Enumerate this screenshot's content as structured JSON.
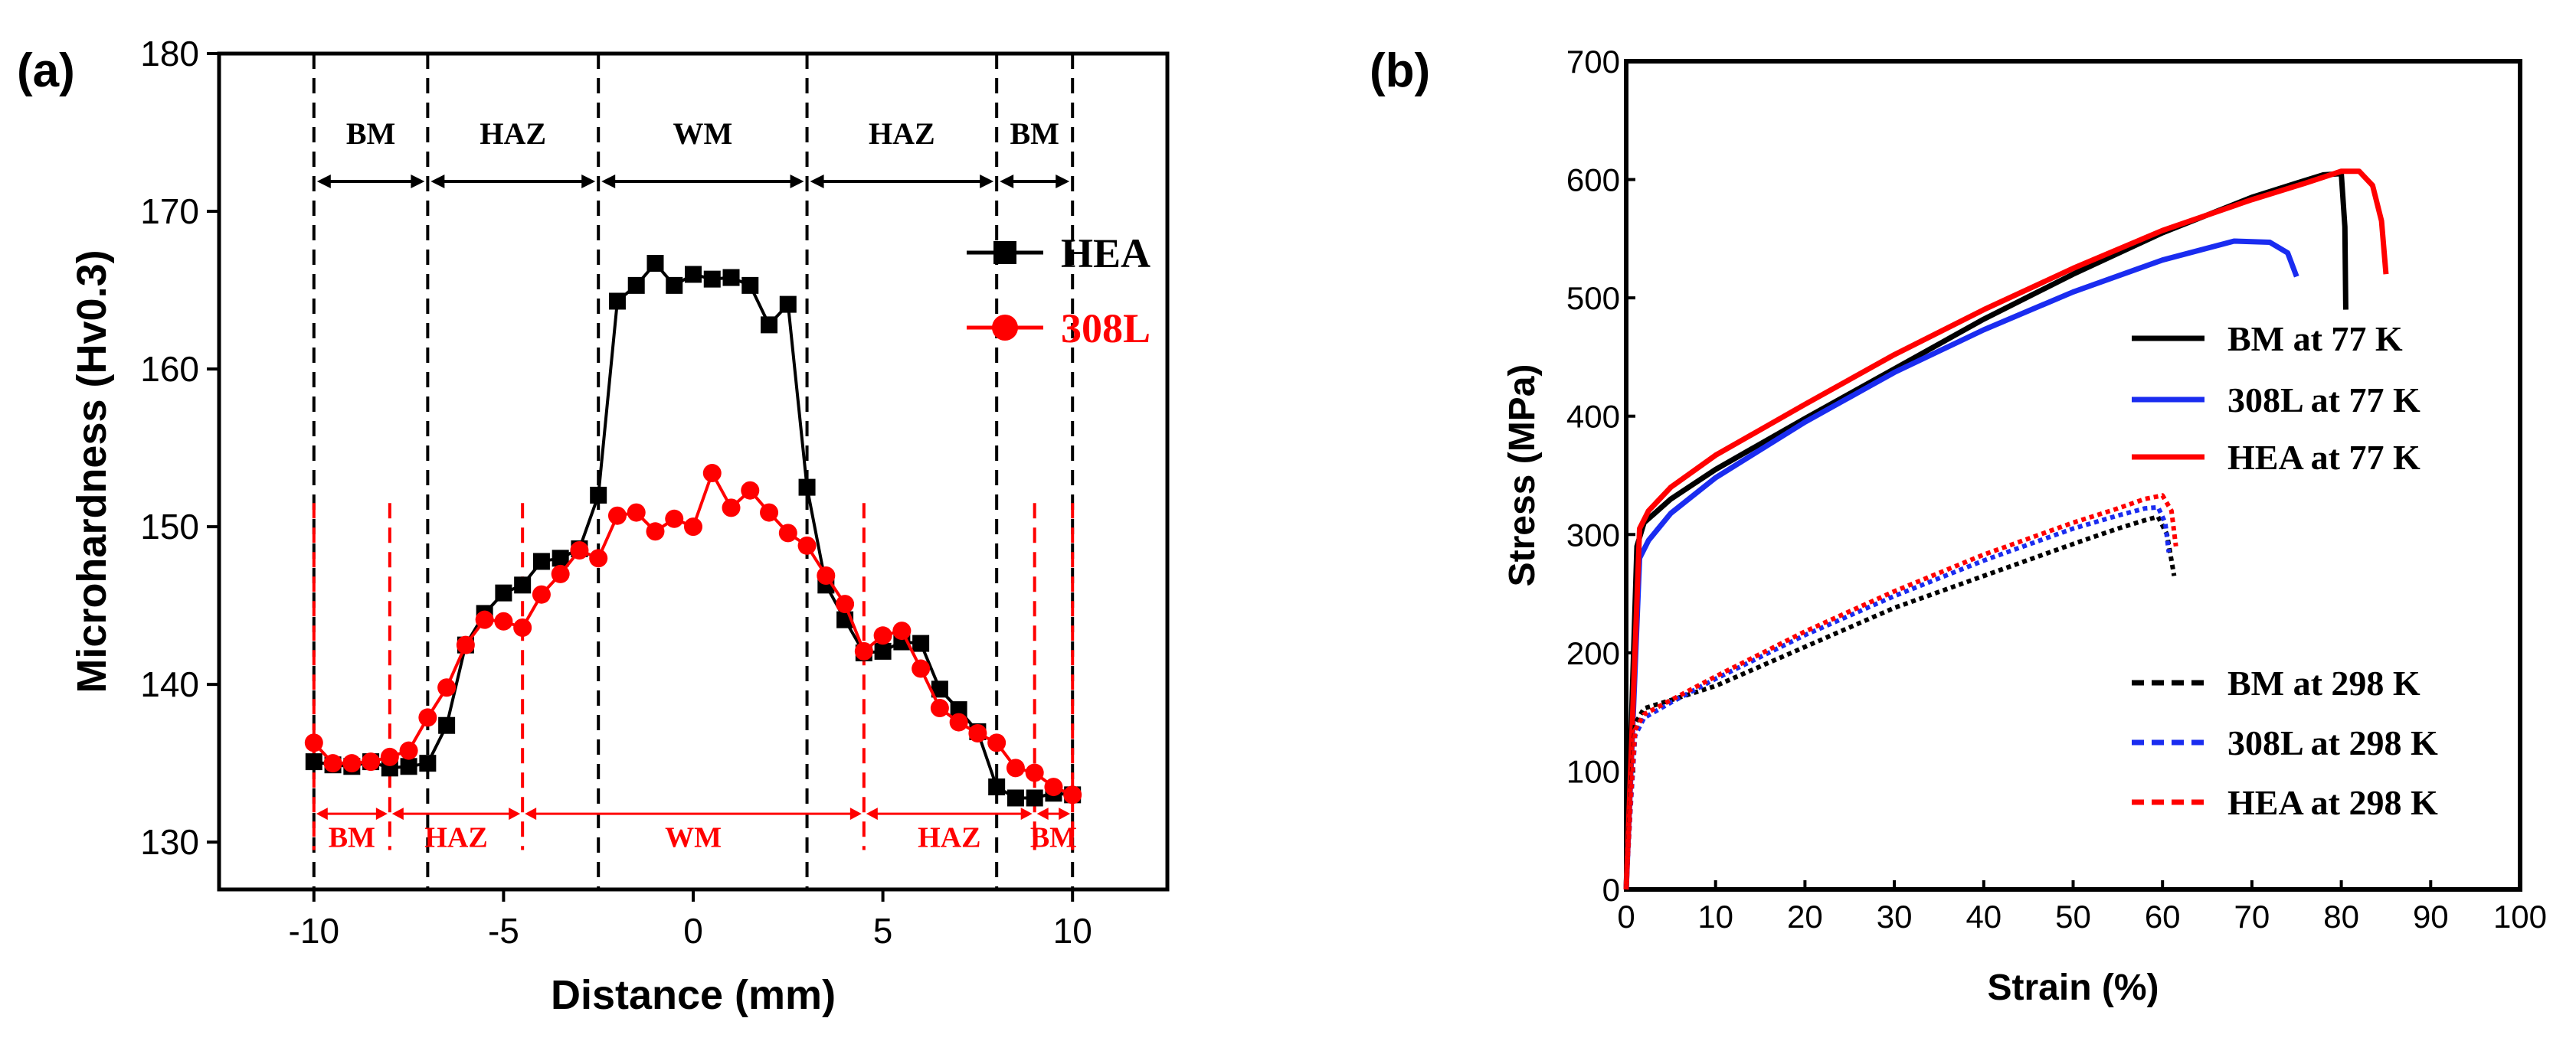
{
  "colors": {
    "black": "#000000",
    "red": "#ff0000",
    "blue": "#1a2cf0",
    "axis": "#000000"
  },
  "chart_data": [
    {
      "panel_label": "(a)",
      "type": "line",
      "xlabel": "Distance (mm)",
      "ylabel": "Microhardness (Hv0.3)",
      "xlim": [
        -12.5,
        12.5
      ],
      "ylim": [
        127,
        180
      ],
      "xticks": [
        -10,
        -5,
        0,
        5,
        10
      ],
      "xtick_labels": [
        "-10",
        "-5",
        "0",
        "5",
        "10"
      ],
      "yticks": [
        130,
        140,
        150,
        160,
        170,
        180
      ],
      "ytick_labels": [
        "130",
        "140",
        "150",
        "160",
        "170",
        "180"
      ],
      "legend": {
        "position": "top-right",
        "entries": [
          "HEA",
          "308L"
        ]
      },
      "series": [
        {
          "name": "HEA",
          "color": "#000000",
          "marker": "square",
          "x": [
            -10,
            -9.5,
            -9,
            -8.5,
            -8,
            -7.5,
            -7,
            -6.5,
            -6,
            -5.5,
            -5,
            -4.5,
            -4,
            -3.5,
            -3,
            -2.5,
            -2,
            -1.5,
            -1,
            -0.5,
            0,
            0.5,
            1,
            1.5,
            2,
            2.5,
            3,
            3.5,
            4,
            4.5,
            5,
            5.5,
            6,
            6.5,
            7,
            7.5,
            8,
            8.5,
            9,
            9.5,
            10
          ],
          "y": [
            135.1,
            134.9,
            134.8,
            135.1,
            134.7,
            134.8,
            135.0,
            137.4,
            142.5,
            144.5,
            145.8,
            146.3,
            147.8,
            148.0,
            148.6,
            152.0,
            164.3,
            165.3,
            166.7,
            165.3,
            166.0,
            165.7,
            165.8,
            165.3,
            162.8,
            164.1,
            152.5,
            146.3,
            144.1,
            142.0,
            142.1,
            142.7,
            142.6,
            139.7,
            138.4,
            137.0,
            133.5,
            132.8,
            132.8,
            133.1,
            133.0
          ]
        },
        {
          "name": "308L",
          "color": "#ff0000",
          "marker": "circle",
          "x": [
            -10,
            -9.5,
            -9,
            -8.5,
            -8,
            -7.5,
            -7,
            -6.5,
            -6,
            -5.5,
            -5,
            -4.5,
            -4,
            -3.5,
            -3,
            -2.5,
            -2,
            -1.5,
            -1,
            -0.5,
            0,
            0.5,
            1,
            1.5,
            2,
            2.5,
            3,
            3.5,
            4,
            4.5,
            5,
            5.5,
            6,
            6.5,
            7,
            7.5,
            8,
            8.5,
            9,
            9.5,
            10
          ],
          "y": [
            136.3,
            135.0,
            135.0,
            135.1,
            135.4,
            135.8,
            137.9,
            139.8,
            142.5,
            144.1,
            144.0,
            143.6,
            145.7,
            147.0,
            148.5,
            148.0,
            150.7,
            150.9,
            149.7,
            150.5,
            150.0,
            153.4,
            151.2,
            152.3,
            150.9,
            149.6,
            148.8,
            146.9,
            145.1,
            142.1,
            143.1,
            143.4,
            141.0,
            138.5,
            137.6,
            136.9,
            136.3,
            134.7,
            134.4,
            133.5,
            133.0
          ]
        }
      ],
      "zones_black": {
        "boundaries_x": [
          -10,
          -7,
          -2.5,
          3,
          8,
          10
        ],
        "labels": [
          "BM",
          "HAZ",
          "WM",
          "HAZ",
          "BM"
        ]
      },
      "zones_red": {
        "boundaries_x": [
          -10,
          -8,
          -4.5,
          4.5,
          9,
          10
        ],
        "labels": [
          "BM",
          "HAZ",
          "WM",
          "HAZ",
          "BM"
        ]
      }
    },
    {
      "panel_label": "(b)",
      "type": "line",
      "xlabel": "Strain (%)",
      "ylabel": "Stress (MPa)",
      "xlim": [
        0,
        100
      ],
      "ylim": [
        0,
        700
      ],
      "xticks": [
        0,
        10,
        20,
        30,
        40,
        50,
        60,
        70,
        80,
        90,
        100
      ],
      "xtick_labels": [
        "0",
        "10",
        "20",
        "30",
        "40",
        "50",
        "60",
        "70",
        "80",
        "90",
        "100"
      ],
      "yticks": [
        0,
        100,
        200,
        300,
        400,
        500,
        600,
        700
      ],
      "ytick_labels": [
        "0",
        "100",
        "200",
        "300",
        "400",
        "500",
        "600",
        "700"
      ],
      "legend": {
        "position": "right",
        "entries": [
          "BM at 77 K",
          "308L at 77 K",
          "HEA at 77 K",
          "BM at 298 K",
          "308L at 298 K",
          "HEA at 298 K"
        ]
      },
      "series": [
        {
          "name": "BM at 77 K",
          "color": "#000000",
          "style": "solid",
          "x": [
            0,
            1.2,
            2,
            5,
            10,
            20,
            30,
            40,
            50,
            60,
            70,
            75,
            78,
            80,
            80.4,
            80.5
          ],
          "y": [
            0,
            290,
            310,
            330,
            355,
            398,
            440,
            482,
            520,
            555,
            585,
            597,
            604,
            605,
            560,
            490
          ]
        },
        {
          "name": "308L at 77 K",
          "color": "#1a2cf0",
          "style": "solid",
          "x": [
            0,
            1.5,
            2.5,
            5,
            10,
            20,
            30,
            40,
            50,
            60,
            68,
            72,
            74,
            75
          ],
          "y": [
            0,
            280,
            295,
            318,
            348,
            395,
            437,
            473,
            505,
            532,
            548,
            547,
            538,
            518
          ]
        },
        {
          "name": "HEA at 77 K",
          "color": "#ff0000",
          "style": "solid",
          "x": [
            0,
            1.5,
            2.5,
            5,
            10,
            20,
            30,
            40,
            50,
            60,
            70,
            76,
            80,
            82,
            83.5,
            84.5,
            85
          ],
          "y": [
            0,
            305,
            320,
            340,
            367,
            410,
            452,
            490,
            525,
            557,
            583,
            597,
            607,
            607,
            595,
            565,
            520
          ]
        },
        {
          "name": "BM at 298 K",
          "color": "#000000",
          "style": "dashed",
          "x": [
            0,
            0.5,
            1,
            2,
            5,
            10,
            20,
            30,
            40,
            50,
            55,
            58,
            59.5,
            60.5,
            61.3
          ],
          "y": [
            0,
            80,
            140,
            153,
            160,
            172,
            205,
            238,
            265,
            292,
            305,
            312,
            315,
            300,
            265
          ]
        },
        {
          "name": "308L at 298 K",
          "color": "#1a2cf0",
          "style": "dashed",
          "x": [
            0,
            0.5,
            1,
            2,
            5,
            10,
            20,
            30,
            40,
            50,
            55,
            58,
            59.5,
            60.3,
            60.7
          ],
          "y": [
            0,
            70,
            130,
            145,
            158,
            178,
            215,
            248,
            278,
            305,
            316,
            322,
            323,
            310,
            285
          ]
        },
        {
          "name": "HEA at 298 K",
          "color": "#ff0000",
          "style": "dashed",
          "x": [
            0,
            0.5,
            1,
            2,
            5,
            10,
            20,
            30,
            40,
            50,
            55,
            58,
            60,
            61,
            61.5
          ],
          "y": [
            0,
            75,
            135,
            148,
            160,
            180,
            218,
            252,
            283,
            310,
            322,
            330,
            333,
            320,
            290
          ]
        }
      ]
    }
  ]
}
